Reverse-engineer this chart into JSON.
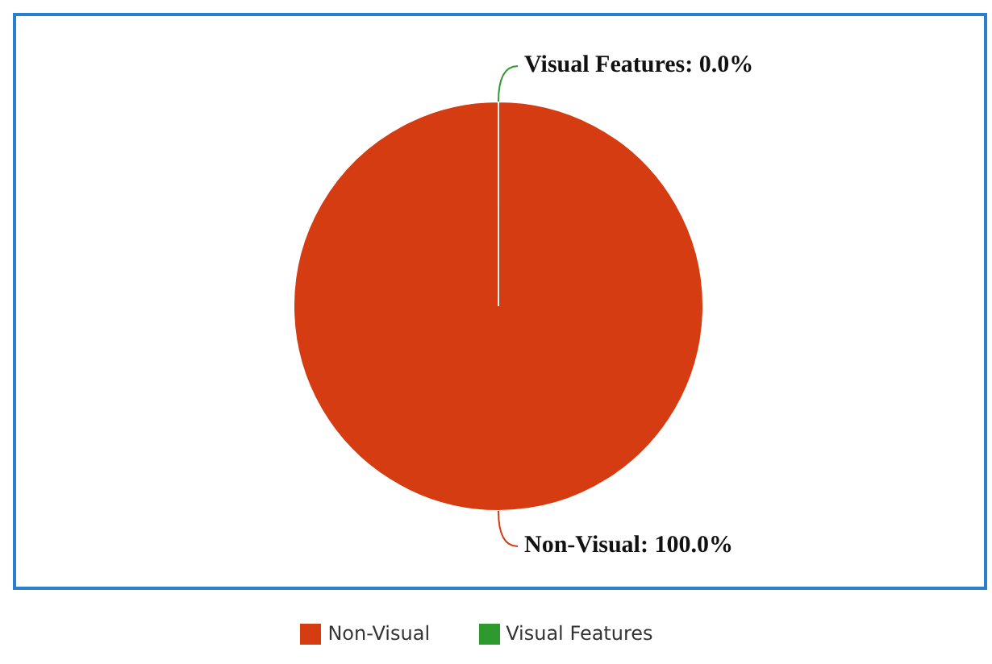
{
  "chart_data": {
    "type": "pie",
    "categories": [
      "Visual Features",
      "Non-Visual"
    ],
    "values": [
      0,
      100
    ],
    "colors": [
      "#2e9a2e",
      "#d63c12"
    ],
    "value_labels": [
      "Visual Features: 0.0%",
      "Non-Visual: 100.0%"
    ],
    "legend": "bottom"
  }
}
